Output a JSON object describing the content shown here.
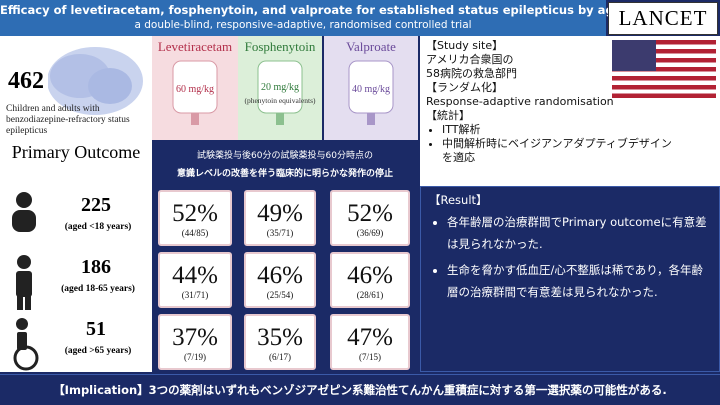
{
  "header": {
    "title": "Efficacy of levetiracetam, fosphenytoin, and valproate for established status epilepticus by age group (ESETT)",
    "subtitle": "a double-blind, responsive-adaptive, randomised controlled trial",
    "logo": "LANCET"
  },
  "population": {
    "count": "462",
    "description": "Children and adults with benzodiazepine-refractory status epilepticus"
  },
  "drugs": [
    {
      "name": "Levetiracetam",
      "dose": "60 mg/kg"
    },
    {
      "name": "Fosphenytoin",
      "dose": "20 mg/kg",
      "note": "(phenytoin equivalents)"
    },
    {
      "name": "Valproate",
      "dose": "40 mg/kg"
    }
  ],
  "study": {
    "site_heading": "【Study site】",
    "site_lines": [
      "アメリカ合衆国の",
      "58病院の救急部門"
    ],
    "randomisation_heading": "【ランダム化】",
    "randomisation": "Response-adaptive randomisation",
    "stats_heading": "【統計】",
    "stats_bullets": [
      "ITT解析",
      "中間解析時にベイジアンアダプティブデザインを適応"
    ]
  },
  "outcome": {
    "label": "Primary Outcome",
    "lines": [
      "試験薬投与後60分の試験薬投与60分時点の",
      "意識レベルの改善を伴う臨床的に明らかな発作の停止"
    ]
  },
  "rows": [
    {
      "n": "225",
      "age": "(aged <18 years)",
      "results": [
        {
          "pct": "52%",
          "frac": "(44/85)"
        },
        {
          "pct": "49%",
          "frac": "(35/71)"
        },
        {
          "pct": "52%",
          "frac": "(36/69)"
        }
      ]
    },
    {
      "n": "186",
      "age": "(aged 18-65 years)",
      "results": [
        {
          "pct": "44%",
          "frac": "(31/71)"
        },
        {
          "pct": "46%",
          "frac": "(25/54)"
        },
        {
          "pct": "46%",
          "frac": "(28/61)"
        }
      ]
    },
    {
      "n": "51",
      "age": "(aged >65 years)",
      "results": [
        {
          "pct": "37%",
          "frac": "(7/19)"
        },
        {
          "pct": "35%",
          "frac": "(6/17)"
        },
        {
          "pct": "47%",
          "frac": "(7/15)"
        }
      ]
    }
  ],
  "result": {
    "heading": "【Result】",
    "bullets": [
      "各年齢層の治療群間でPrimary outcomeに有意差は見られなかった.",
      "生命を脅かす低血圧/心不整脈は稀であり，各年齢層の治療群間で有意差は見られなかった."
    ]
  },
  "implication": "【Implication】3つの薬剤はいずれもベンゾジアゼピン系難治性てんかん重積症に対する第一選択薬の可能性がある."
}
